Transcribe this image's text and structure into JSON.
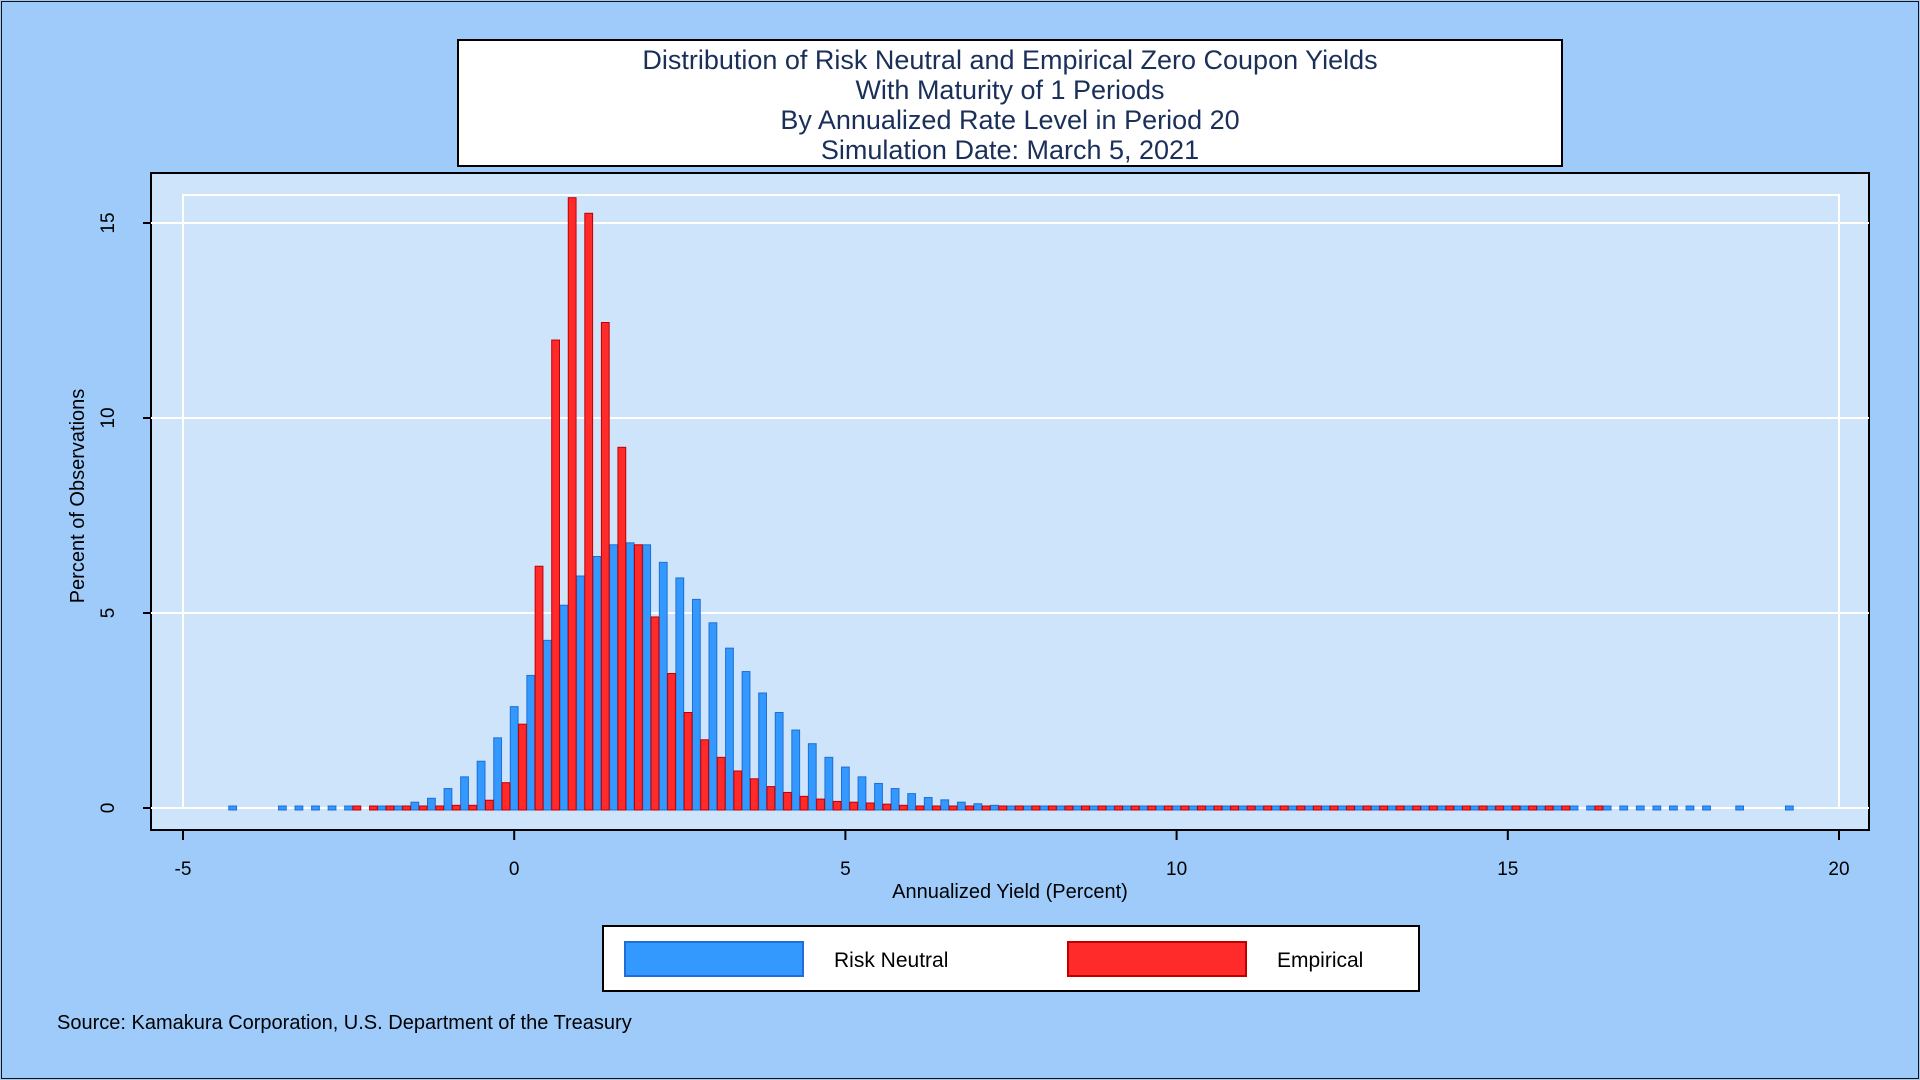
{
  "chart_data": {
    "type": "bar",
    "title": [
      "Distribution of Risk Neutral and Empirical Zero Coupon Yields",
      "With Maturity of 1 Periods",
      "By Annualized Rate Level in Period 20",
      "Simulation Date: March 5, 2021"
    ],
    "xlabel": "Annualized Yield (Percent)",
    "ylabel": "Percent of Observations",
    "xlim": [
      -5,
      20
    ],
    "ylim": [
      0,
      16
    ],
    "x_ticks": [
      "-5",
      "0",
      "5",
      "10",
      "15",
      "20"
    ],
    "y_ticks": [
      "0",
      "5",
      "10",
      "15"
    ],
    "grid": true,
    "legend_position": "bottom",
    "colors": {
      "risk_neutral": "#3399ff",
      "risk_neutral_edge": "#1f6fd6",
      "empirical": "#ff2a2a",
      "empirical_edge": "#c00000",
      "plot_background": "#cde4fb",
      "outer_background": "#9ecbfa"
    },
    "series": [
      {
        "name": "Risk Neutral",
        "x": [
          -4.25,
          -3.5,
          -3.25,
          -3.0,
          -2.75,
          -2.5,
          -2.0,
          -1.75,
          -1.5,
          -1.25,
          -1.0,
          -0.75,
          -0.5,
          -0.25,
          0.0,
          0.25,
          0.5,
          0.75,
          1.0,
          1.25,
          1.5,
          1.75,
          2.0,
          2.25,
          2.5,
          2.75,
          3.0,
          3.25,
          3.5,
          3.75,
          4.0,
          4.25,
          4.5,
          4.75,
          5.0,
          5.25,
          5.5,
          5.75,
          6.0,
          6.25,
          6.5,
          6.75,
          7.0,
          7.25,
          7.5,
          7.75,
          8.0,
          8.25,
          8.5,
          8.75,
          9.0,
          9.25,
          9.5,
          9.75,
          10.0,
          10.25,
          10.5,
          10.75,
          11.0,
          11.25,
          11.5,
          11.75,
          12.0,
          12.25,
          12.5,
          12.75,
          13.0,
          13.25,
          13.5,
          13.75,
          14.0,
          14.25,
          14.5,
          14.75,
          15.0,
          15.25,
          15.5,
          15.75,
          16.0,
          16.25,
          16.5,
          16.75,
          17.0,
          17.25,
          17.5,
          17.75,
          18.0,
          18.5,
          19.25
        ],
        "values": [
          0.02,
          0.02,
          0.02,
          0.02,
          0.02,
          0.03,
          0.05,
          0.1,
          0.2,
          0.3,
          0.55,
          0.85,
          1.25,
          1.85,
          2.65,
          3.45,
          4.35,
          5.25,
          6.0,
          6.5,
          6.8,
          6.85,
          6.8,
          6.35,
          5.95,
          5.4,
          4.8,
          4.15,
          3.55,
          3.0,
          2.5,
          2.05,
          1.7,
          1.35,
          1.1,
          0.85,
          0.68,
          0.55,
          0.42,
          0.32,
          0.26,
          0.2,
          0.16,
          0.12,
          0.1,
          0.08,
          0.06,
          0.05,
          0.05,
          0.04,
          0.04,
          0.04,
          0.03,
          0.03,
          0.03,
          0.03,
          0.03,
          0.03,
          0.03,
          0.03,
          0.03,
          0.03,
          0.03,
          0.03,
          0.03,
          0.03,
          0.03,
          0.03,
          0.03,
          0.03,
          0.03,
          0.03,
          0.03,
          0.03,
          0.03,
          0.03,
          0.03,
          0.03,
          0.02,
          0.02,
          0.02,
          0.02,
          0.02,
          0.02,
          0.02,
          0.02,
          0.02,
          0.02,
          0.02
        ]
      },
      {
        "name": "Empirical",
        "x": [
          -2.5,
          -2.25,
          -2.0,
          -1.75,
          -1.5,
          -1.25,
          -1.0,
          -0.75,
          -0.5,
          -0.25,
          0.0,
          0.25,
          0.5,
          0.75,
          1.0,
          1.25,
          1.5,
          1.75,
          2.0,
          2.25,
          2.5,
          2.75,
          3.0,
          3.25,
          3.5,
          3.75,
          4.0,
          4.25,
          4.5,
          4.75,
          5.0,
          5.25,
          5.5,
          5.75,
          6.0,
          6.25,
          6.5,
          6.75,
          7.0,
          7.25,
          7.5,
          7.75,
          8.0,
          8.25,
          8.5,
          8.75,
          9.0,
          9.25,
          9.5,
          9.75,
          10.0,
          10.25,
          10.5,
          10.75,
          11.0,
          11.25,
          11.5,
          11.75,
          12.0,
          12.25,
          12.5,
          12.75,
          13.0,
          13.25,
          13.5,
          13.75,
          14.0,
          14.25,
          14.5,
          14.75,
          15.0,
          15.25,
          15.5,
          15.75,
          16.25
        ],
        "values": [
          0.05,
          0.02,
          0.05,
          0.08,
          0.1,
          0.1,
          0.12,
          0.12,
          0.25,
          0.7,
          2.2,
          6.25,
          12.05,
          15.7,
          15.3,
          12.5,
          9.3,
          6.8,
          4.95,
          3.5,
          2.5,
          1.8,
          1.35,
          1.0,
          0.8,
          0.6,
          0.45,
          0.35,
          0.28,
          0.22,
          0.2,
          0.18,
          0.15,
          0.12,
          0.1,
          0.1,
          0.08,
          0.08,
          0.07,
          0.06,
          0.06,
          0.05,
          0.05,
          0.05,
          0.05,
          0.05,
          0.05,
          0.05,
          0.05,
          0.05,
          0.05,
          0.05,
          0.05,
          0.05,
          0.05,
          0.05,
          0.05,
          0.05,
          0.05,
          0.05,
          0.05,
          0.05,
          0.05,
          0.05,
          0.05,
          0.05,
          0.05,
          0.05,
          0.05,
          0.05,
          0.05,
          0.05,
          0.05,
          0.05,
          0.05
        ]
      }
    ]
  },
  "legend": {
    "risk_neutral_label": "Risk Neutral",
    "empirical_label": "Empirical"
  },
  "source": "Source: Kamakura Corporation, U.S. Department of the Treasury"
}
